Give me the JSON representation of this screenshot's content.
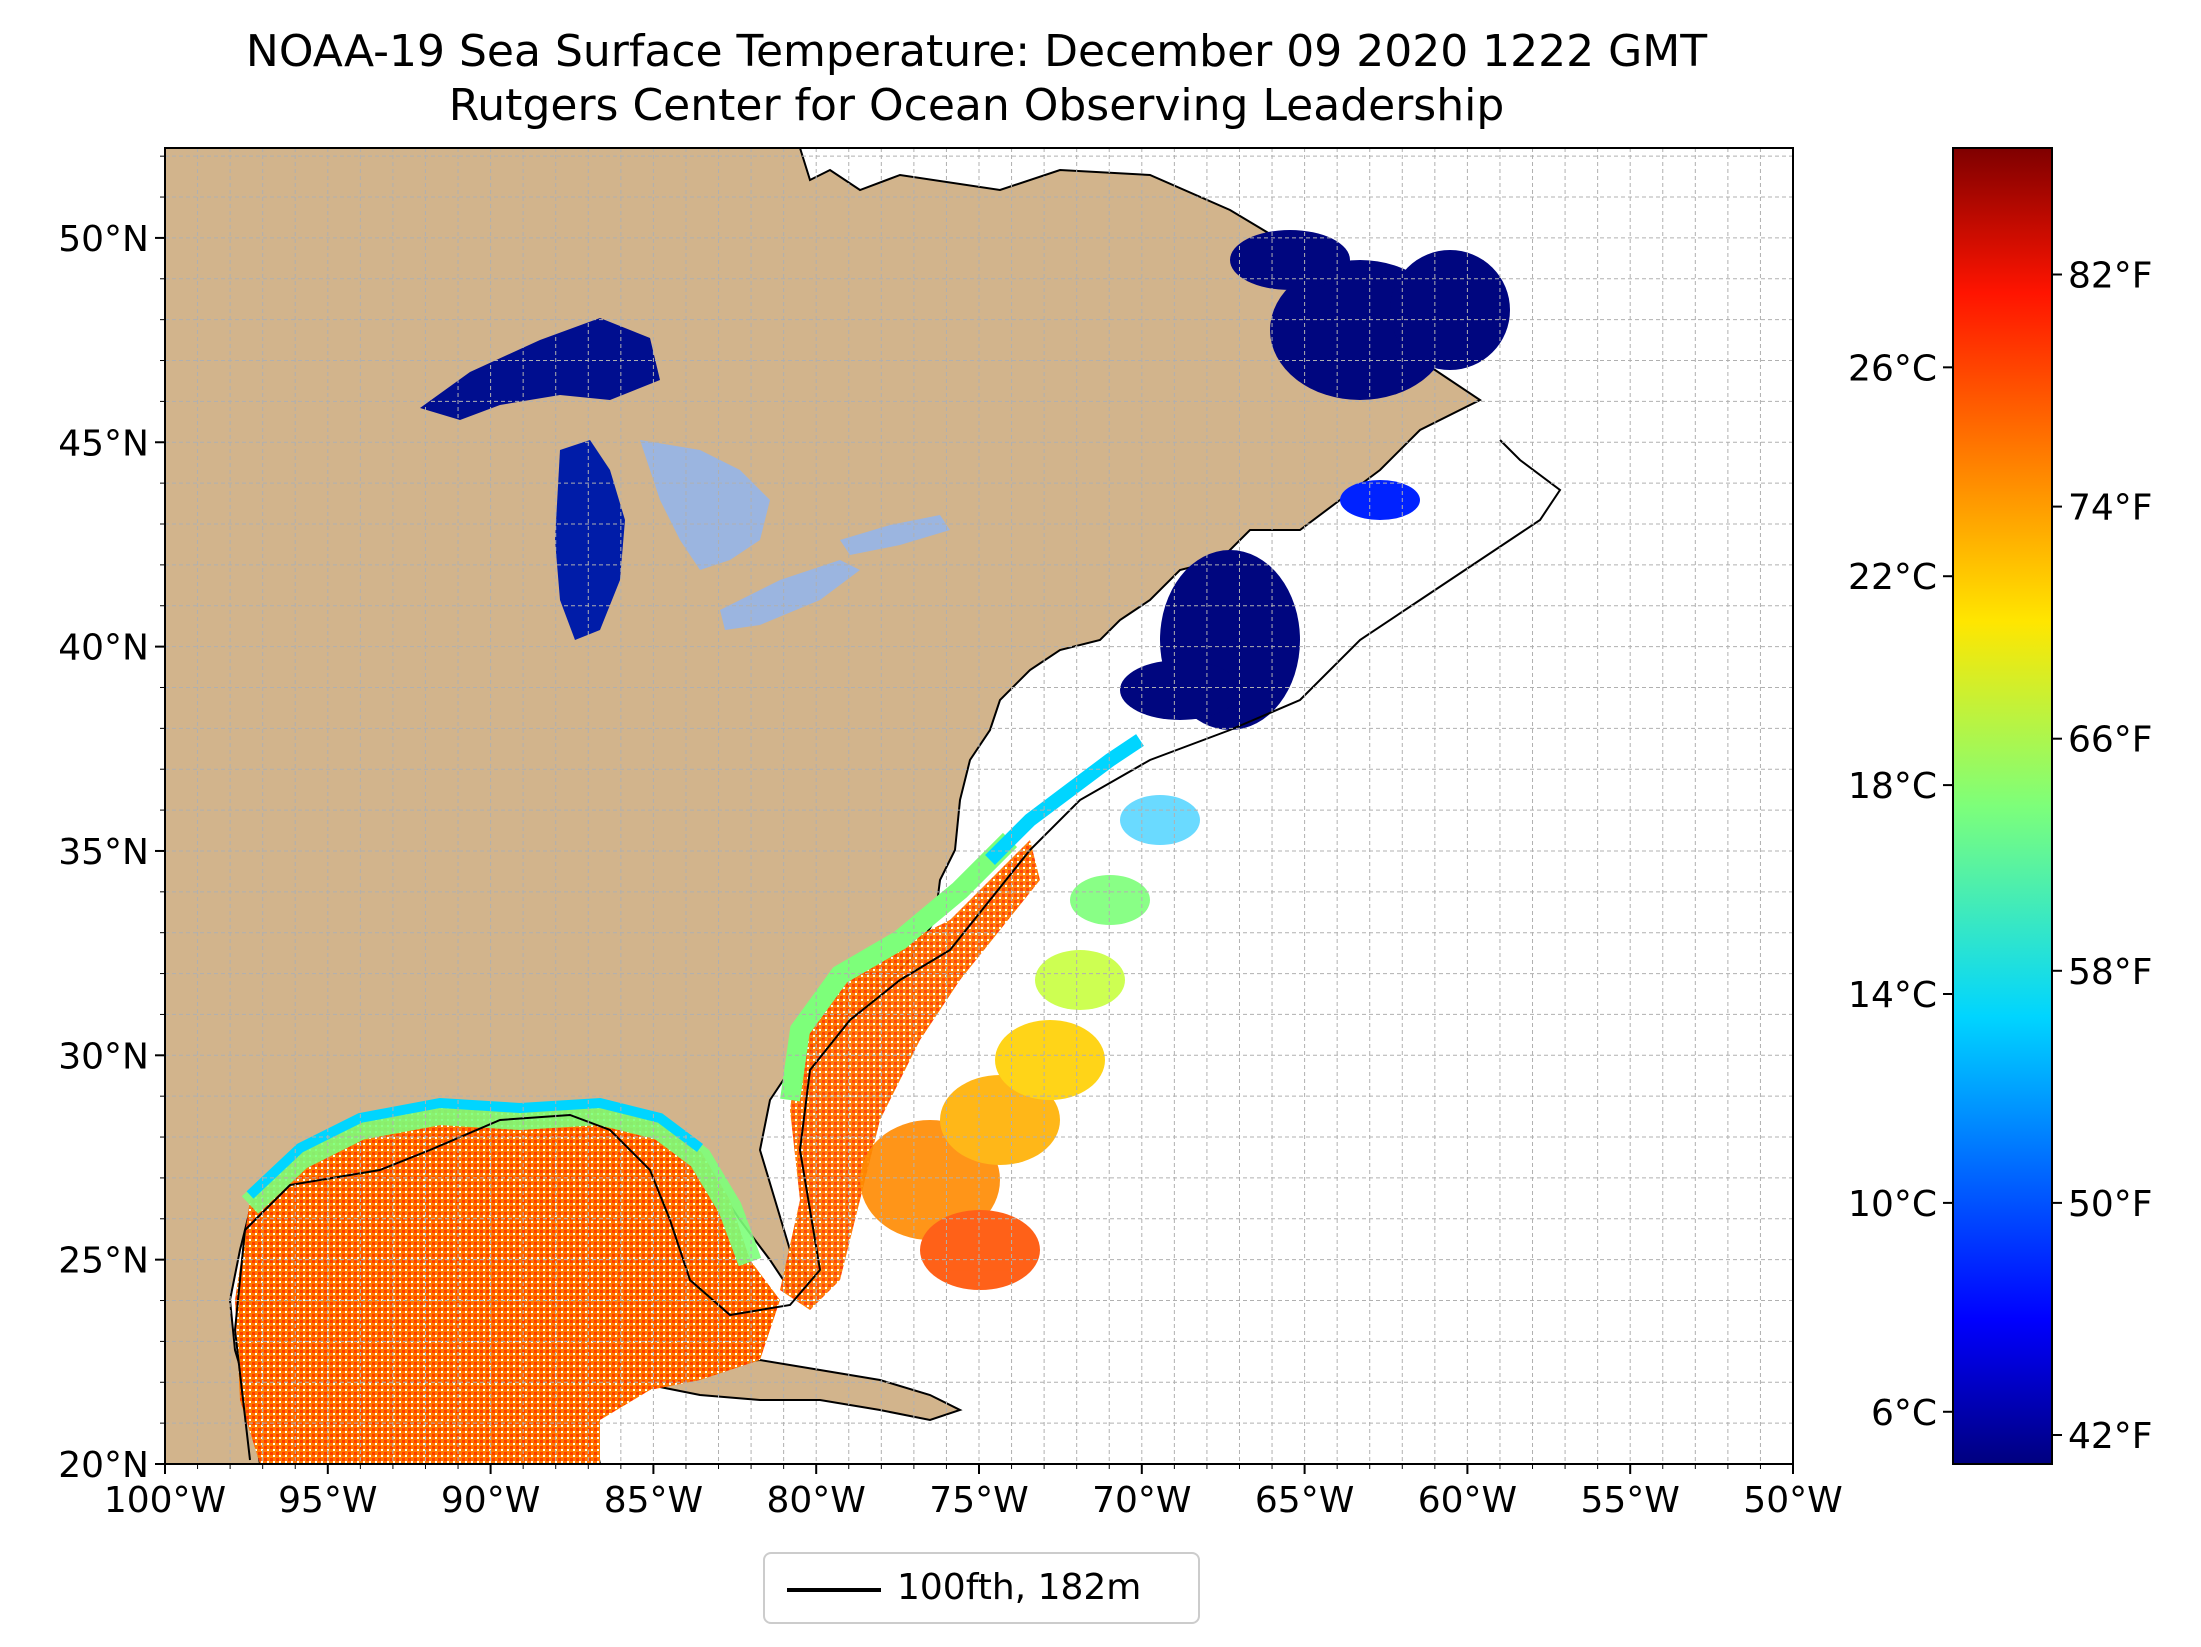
{
  "header": {
    "title": "NOAA-19 Sea Surface Temperature: December 09 2020 1222 GMT",
    "subtitle": "Rutgers Center for Ocean Observing Leadership"
  },
  "map": {
    "extent_lon": [
      -100,
      -50
    ],
    "extent_lat": [
      20,
      52.2
    ],
    "lon_ticks": [
      {
        "value": -100,
        "label": "100°W"
      },
      {
        "value": -95,
        "label": "95°W"
      },
      {
        "value": -90,
        "label": "90°W"
      },
      {
        "value": -85,
        "label": "85°W"
      },
      {
        "value": -80,
        "label": "80°W"
      },
      {
        "value": -75,
        "label": "75°W"
      },
      {
        "value": -70,
        "label": "70°W"
      },
      {
        "value": -65,
        "label": "65°W"
      },
      {
        "value": -60,
        "label": "60°W"
      },
      {
        "value": -55,
        "label": "55°W"
      },
      {
        "value": -50,
        "label": "50°W"
      }
    ],
    "lat_ticks": [
      {
        "value": 20,
        "label": "20°N"
      },
      {
        "value": 25,
        "label": "25°N"
      },
      {
        "value": 30,
        "label": "30°N"
      },
      {
        "value": 35,
        "label": "35°N"
      },
      {
        "value": 40,
        "label": "40°N"
      },
      {
        "value": 45,
        "label": "45°N"
      },
      {
        "value": 50,
        "label": "50°N"
      }
    ],
    "grid": true,
    "colors": {
      "land": "#d2b48c",
      "lakes": "#9bb5e0",
      "ocean_nodata": "#ffffff",
      "isobath": "#000000"
    }
  },
  "colorbar": {
    "colormap": "jet",
    "range_c": [
      5,
      30.2
    ],
    "celsius_ticks": [
      {
        "value": 6,
        "label": "6°C"
      },
      {
        "value": 10,
        "label": "10°C"
      },
      {
        "value": 14,
        "label": "14°C"
      },
      {
        "value": 18,
        "label": "18°C"
      },
      {
        "value": 22,
        "label": "22°C"
      },
      {
        "value": 26,
        "label": "26°C"
      }
    ],
    "fahrenheit_ticks": [
      {
        "value": 42,
        "label": "42°F"
      },
      {
        "value": 50,
        "label": "50°F"
      },
      {
        "value": 58,
        "label": "58°F"
      },
      {
        "value": 66,
        "label": "66°F"
      },
      {
        "value": 74,
        "label": "74°F"
      },
      {
        "value": 82,
        "label": "82°F"
      }
    ]
  },
  "legend": {
    "placement": "bottom-center",
    "entries": [
      {
        "label": "100fth, 182m",
        "color": "#000000"
      }
    ]
  }
}
